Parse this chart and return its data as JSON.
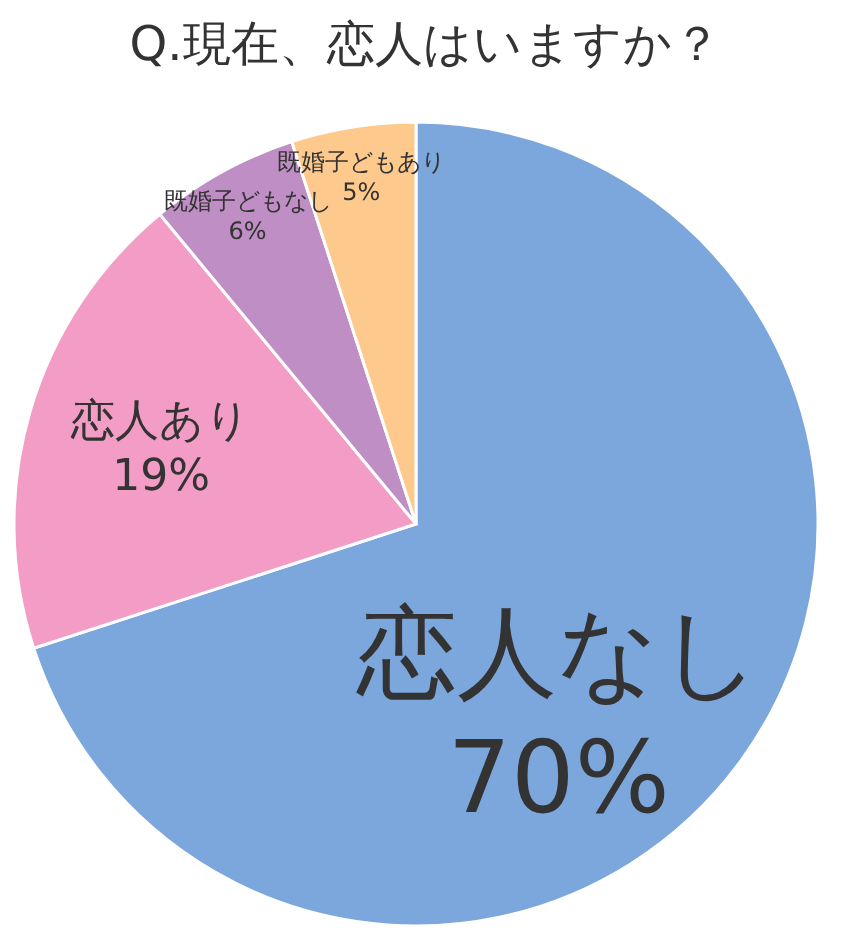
{
  "chart_data": {
    "type": "pie",
    "title": "Q.現在、恋人はいますか？",
    "categories": [
      "恋人なし",
      "恋人あり",
      "既婚子どもなし",
      "既婚子どもあり"
    ],
    "values": [
      70,
      19,
      6,
      5
    ],
    "colors": [
      "#7ba7dc",
      "#f39cc6",
      "#bf8ec4",
      "#fdc98c"
    ],
    "value_labels": [
      "70%",
      "19%",
      "6%",
      "5%"
    ]
  }
}
